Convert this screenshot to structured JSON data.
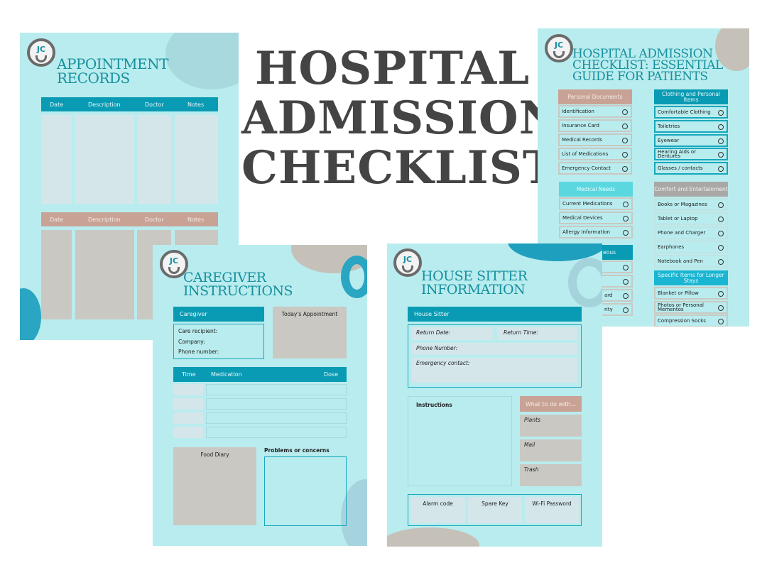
{
  "headline": {
    "lines": [
      "HOSPITAL",
      "ADMISSION",
      "CHECKLIST"
    ]
  },
  "logo": "JC",
  "appointment": {
    "title": [
      "APPOINTMENT",
      "RECORDS"
    ],
    "columns": [
      "Date",
      "Description",
      "Doctor",
      "Notes"
    ]
  },
  "checklist": {
    "title": [
      "HOSPITAL ADMISSION",
      "CHECKLIST: ESSENTIAL",
      "GUIDE FOR PATIENTS"
    ],
    "personal_documents": {
      "header": "Personal Documents",
      "items": [
        "Identification",
        "Insurance Card",
        "Medical Records",
        "List of Medications",
        "Emergency Contact"
      ]
    },
    "medical_needs": {
      "header": "Medical Needs",
      "items": [
        "Current Medications",
        "Medical Devices",
        "Allergy Information"
      ]
    },
    "miscellaneous": {
      "header": "eous",
      "items": [
        "",
        "",
        "ard",
        "rity"
      ]
    },
    "clothing": {
      "header": "Clothing and Personal Items",
      "items": [
        "Comfortable Clothing",
        "Toiletries",
        "Eyewear",
        "Hearing Aids or Dentures",
        "Glasses / contacts"
      ]
    },
    "comfort": {
      "header": "Comfort and Entertainment",
      "items": [
        "Books or Magazines",
        "Tablet or Laptop",
        "Phone and Charger",
        "Earphones",
        "Notebook and Pen"
      ]
    },
    "longer_stays": {
      "header": "Specific Items for Longer Stays",
      "items": [
        "Blanket or Pillow",
        "Photos or Personal Mementos",
        "Compression Socks"
      ]
    }
  },
  "caregiver": {
    "title": [
      "CAREGIVER",
      "INSTRUCTIONS"
    ],
    "caregiver_header": "Caregiver",
    "fields": [
      "Care recipient:",
      "Company:",
      "Phone number:"
    ],
    "todays_appointment": "Today's Appointment",
    "med_columns": {
      "time": "Time",
      "medication": "Medication",
      "dose": "Dose"
    },
    "food_diary": "Food Diary",
    "problems": "Problems or concerns"
  },
  "house_sitter": {
    "title": [
      "HOUSE SITTER",
      "INFORMATION"
    ],
    "header": "House Sitter",
    "return_date": "Return Date:",
    "return_time": "Return Time:",
    "phone": "Phone Number:",
    "emergency": "Emergency contact:",
    "instructions": "Instructions",
    "what_to_do": "What to do with...",
    "tasks": [
      "Plants",
      "Mail",
      "Trash"
    ],
    "bottom": [
      "Alarm code",
      "Spare Key",
      "Wi-Fi Password"
    ]
  },
  "colors": {
    "page": "#b9ecee",
    "teal": "#0a9bb4",
    "tan": "#c8a395",
    "gray": "#c9c8c2",
    "cyan": "#5bd7e0",
    "headline": "#444444"
  }
}
